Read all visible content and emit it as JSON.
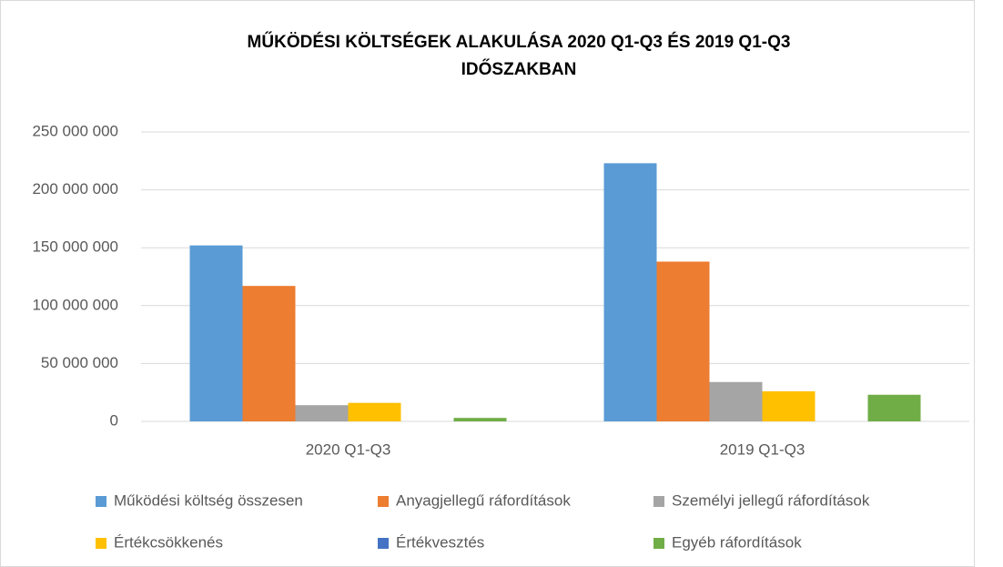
{
  "chart_data": {
    "type": "bar",
    "title": [
      "MŰKÖDÉSI KÖLTSÉGEK  ALAKULÁSA   2020 Q1-Q3 ÉS 2019 Q1-Q3",
      "IDŐSZAKBAN"
    ],
    "categories": [
      "2020 Q1-Q3",
      "2019 Q1-Q3"
    ],
    "series": [
      {
        "name": "Működési költség összesen",
        "color": "#5b9bd5",
        "values": [
          152000000,
          223000000
        ]
      },
      {
        "name": "Anyagjellegű ráfordítások",
        "color": "#ed7d31",
        "values": [
          117000000,
          138000000
        ]
      },
      {
        "name": "Személyi jellegű ráfordítások",
        "color": "#a5a5a5",
        "values": [
          14000000,
          34000000
        ]
      },
      {
        "name": "Értékcsökkenés",
        "color": "#ffc000",
        "values": [
          16000000,
          26000000
        ]
      },
      {
        "name": "Értékvesztés",
        "color": "#4472c4",
        "values": [
          0,
          0
        ]
      },
      {
        "name": "Egyéb ráfordítások",
        "color": "#70ad47",
        "values": [
          3000000,
          23000000
        ]
      }
    ],
    "ylim": [
      0,
      250000000
    ],
    "yticks": [
      0,
      {
        "value": 50000000,
        "label": "50 000 000"
      },
      {
        "value": 100000000,
        "label": "100 000 000"
      },
      {
        "value": 150000000,
        "label": "150 000 000"
      },
      {
        "value": 200000000,
        "label": "200 000 000"
      },
      {
        "value": 250000000,
        "label": "250 000 000"
      }
    ],
    "grid": true
  }
}
